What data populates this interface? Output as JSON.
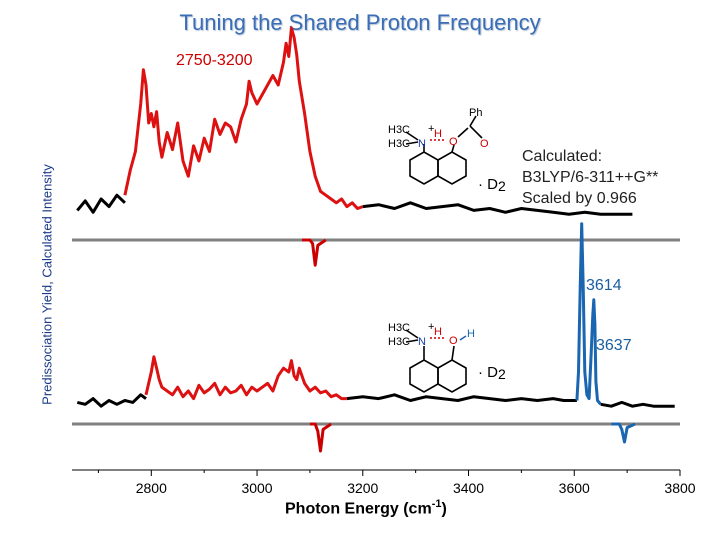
{
  "chart_data": {
    "type": "line",
    "title": "Tuning the Shared Proton Frequency",
    "xlabel": "Photon Energy (cm-1)",
    "xlabel_main": "Photon Energy (cm",
    "xlabel_sup": "-1",
    "xlabel_close": ")",
    "ylabel": "Predissociation Yield, Calculated Intensity",
    "xlim": [
      2650,
      3800
    ],
    "x_ticks": [
      2800,
      3000,
      3200,
      3400,
      3600,
      3800
    ],
    "x_tick_labels": [
      "2800",
      "3000",
      "3200",
      "3400",
      "3600",
      "3800"
    ],
    "annotations": {
      "range_label": "2750-3200",
      "calc_note": [
        "Calculated:",
        "B3LYP/6-311++G**",
        "Scaled by 0.966"
      ],
      "peak_1": "3614",
      "peak_2": "3637",
      "tag_prefix": "· D",
      "tag_sub": "2"
    },
    "series": [
      {
        "color": "#000000",
        "x": [
          2660,
          2675,
          2690,
          2705,
          2720,
          2735,
          2750
        ],
        "y": [
          0.04,
          0.09,
          0.03,
          0.1,
          0.06,
          0.12,
          0.08
        ]
      },
      {
        "color": "#dd1111",
        "x": [
          2750,
          2760,
          2770,
          2780,
          2785,
          2790,
          2795,
          2800,
          2805,
          2810,
          2815,
          2820,
          2830,
          2840,
          2850,
          2860,
          2870,
          2880,
          2890,
          2900,
          2910,
          2920,
          2930,
          2940,
          2950,
          2960,
          2970,
          2980,
          2985,
          2990,
          3000,
          3010,
          3020,
          3030,
          3040,
          3050,
          3055,
          3060,
          3065,
          3070,
          3075,
          3080,
          3090,
          3100,
          3110,
          3120,
          3130,
          3140,
          3150,
          3160,
          3170,
          3180,
          3190,
          3200
        ],
        "y": [
          0.12,
          0.25,
          0.35,
          0.6,
          0.78,
          0.7,
          0.5,
          0.55,
          0.48,
          0.56,
          0.4,
          0.32,
          0.45,
          0.36,
          0.5,
          0.3,
          0.22,
          0.38,
          0.3,
          0.42,
          0.35,
          0.52,
          0.44,
          0.5,
          0.48,
          0.4,
          0.52,
          0.6,
          0.72,
          0.66,
          0.6,
          0.65,
          0.7,
          0.75,
          0.7,
          0.82,
          0.92,
          0.85,
          1.0,
          0.95,
          0.86,
          0.72,
          0.55,
          0.35,
          0.22,
          0.14,
          0.12,
          0.1,
          0.08,
          0.1,
          0.06,
          0.08,
          0.05,
          0.06
        ]
      },
      {
        "color": "#000000",
        "x": [
          3200,
          3230,
          3260,
          3290,
          3320,
          3350,
          3380,
          3410,
          3440,
          3470,
          3500,
          3530,
          3560,
          3590,
          3620,
          3650,
          3680,
          3710
        ],
        "y": [
          0.06,
          0.07,
          0.05,
          0.08,
          0.05,
          0.06,
          0.07,
          0.04,
          0.05,
          0.03,
          0.05,
          0.04,
          0.03,
          0.02,
          0.03,
          0.02,
          0.02,
          0.02
        ]
      },
      {
        "color": "#cc0000",
        "x": [
          3085,
          3100,
          3105,
          3110,
          3115,
          3130
        ],
        "y": [
          0,
          0,
          -0.02,
          -0.14,
          -0.03,
          0
        ]
      },
      {
        "color": "#000000",
        "x": [
          2660,
          2675,
          2690,
          2705,
          2720,
          2735,
          2750,
          2765,
          2780,
          2790
        ],
        "y": [
          0.04,
          0.03,
          0.06,
          0.02,
          0.05,
          0.03,
          0.05,
          0.04,
          0.08,
          0.06
        ]
      },
      {
        "color": "#dd1111",
        "x": [
          2790,
          2800,
          2805,
          2810,
          2815,
          2820,
          2830,
          2840,
          2850,
          2860,
          2870,
          2880,
          2890,
          2900,
          2910,
          2920,
          2930,
          2940,
          2950,
          2960,
          2970,
          2980,
          2990,
          3000,
          3010,
          3020,
          3030,
          3040,
          3050,
          3060,
          3065,
          3070,
          3075,
          3080,
          3090,
          3100,
          3110,
          3120,
          3130,
          3140,
          3150,
          3160,
          3170
        ],
        "y": [
          0.08,
          0.2,
          0.28,
          0.22,
          0.16,
          0.12,
          0.1,
          0.08,
          0.12,
          0.07,
          0.1,
          0.06,
          0.13,
          0.09,
          0.11,
          0.14,
          0.08,
          0.12,
          0.09,
          0.1,
          0.13,
          0.08,
          0.12,
          0.1,
          0.12,
          0.14,
          0.1,
          0.18,
          0.22,
          0.2,
          0.26,
          0.18,
          0.16,
          0.22,
          0.14,
          0.1,
          0.12,
          0.09,
          0.1,
          0.07,
          0.08,
          0.06,
          0.06
        ]
      },
      {
        "color": "#000000",
        "x": [
          3170,
          3200,
          3230,
          3260,
          3290,
          3320,
          3350,
          3380,
          3410,
          3440,
          3470,
          3500,
          3530,
          3560,
          3580,
          3600,
          3605
        ],
        "y": [
          0.06,
          0.07,
          0.06,
          0.08,
          0.05,
          0.07,
          0.06,
          0.05,
          0.07,
          0.06,
          0.05,
          0.06,
          0.05,
          0.06,
          0.05,
          0.05,
          0.05
        ]
      },
      {
        "color": "#1a66b0",
        "x": [
          3605,
          3608,
          3611,
          3614,
          3617,
          3620,
          3624,
          3628,
          3632,
          3635,
          3637,
          3639,
          3641,
          3644,
          3650
        ],
        "y": [
          0.05,
          0.2,
          0.62,
          0.98,
          0.65,
          0.2,
          0.08,
          0.06,
          0.3,
          0.5,
          0.58,
          0.45,
          0.15,
          0.05,
          0.03
        ]
      },
      {
        "color": "#000000",
        "x": [
          3650,
          3670,
          3690,
          3710,
          3730,
          3750,
          3770,
          3790
        ],
        "y": [
          0.03,
          0.02,
          0.04,
          0.02,
          0.03,
          0.02,
          0.02,
          0.02
        ]
      },
      {
        "color": "#cc0000",
        "x": [
          3100,
          3110,
          3115,
          3120,
          3125,
          3140
        ],
        "y": [
          0,
          0,
          -0.04,
          -0.15,
          -0.03,
          0
        ]
      },
      {
        "color": "#1a66b0",
        "x": [
          3670,
          3685,
          3690,
          3695,
          3700,
          3715
        ],
        "y": [
          0,
          0,
          -0.03,
          -0.1,
          -0.02,
          0
        ]
      }
    ]
  },
  "molecule_top": {
    "ph_label": "Ph",
    "o_label": "O",
    "n_label": "N",
    "h_label": "H",
    "plus_label": "+",
    "methyl_1": "H3C",
    "methyl_2": "H3C"
  },
  "molecule_bottom": {
    "o_label": "O",
    "n_label": "N",
    "h_label": "H",
    "plus_label": "+",
    "methyl_1": "H3C",
    "methyl_2": "H3C"
  }
}
